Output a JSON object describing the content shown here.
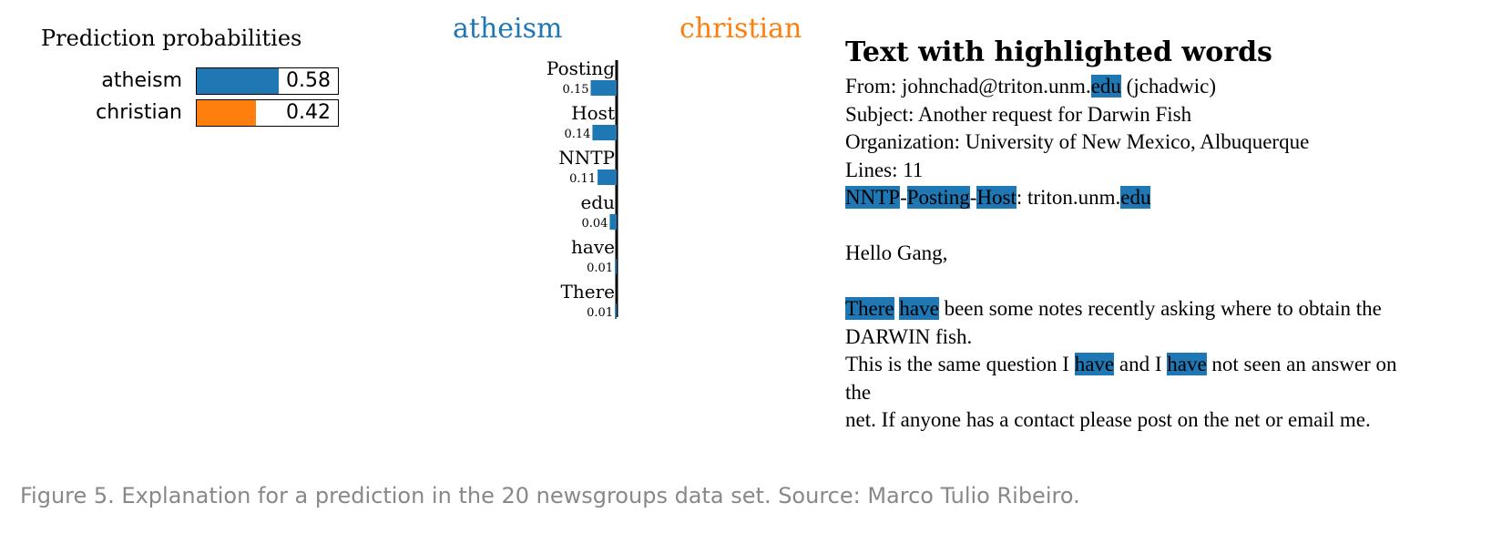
{
  "colors": {
    "atheism": "#1f77b4",
    "christian": "#ff7f0e",
    "highlight": "#1f77b4"
  },
  "chart_data": [
    {
      "type": "bar",
      "title": "Prediction probabilities",
      "categories": [
        "atheism",
        "christian"
      ],
      "values": [
        0.58,
        0.42
      ],
      "xlim": [
        0,
        1
      ],
      "value_labels": [
        "0.58",
        "0.42"
      ]
    },
    {
      "type": "bar",
      "orientation": "horizontal",
      "class_labels": [
        "atheism",
        "christian"
      ],
      "categories": [
        "Posting",
        "Host",
        "NNTP",
        "edu",
        "have",
        "There"
      ],
      "values": [
        0.15,
        0.14,
        0.11,
        0.04,
        0.01,
        0.01
      ],
      "value_labels": [
        "0.15",
        "0.14",
        "0.11",
        "0.04",
        "0.01",
        "0.01"
      ],
      "direction": "atheism"
    }
  ],
  "text_panel": {
    "title": "Text with highlighted words",
    "lines": [
      [
        {
          "t": "From: johnchad@triton.unm."
        },
        {
          "t": "edu",
          "hl": true
        },
        {
          "t": " (jchadwic)"
        }
      ],
      [
        {
          "t": "Subject: Another request for Darwin Fish"
        }
      ],
      [
        {
          "t": "Organization: University of New Mexico, Albuquerque"
        }
      ],
      [
        {
          "t": "Lines: 11"
        }
      ],
      [
        {
          "t": "NNTP",
          "hl": true
        },
        {
          "t": "-"
        },
        {
          "t": "Posting",
          "hl": true
        },
        {
          "t": "-"
        },
        {
          "t": "Host",
          "hl": true
        },
        {
          "t": ": triton.unm."
        },
        {
          "t": "edu",
          "hl": true
        }
      ],
      [
        {
          "t": ""
        }
      ],
      [
        {
          "t": "Hello Gang,"
        }
      ],
      [
        {
          "t": ""
        }
      ],
      [
        {
          "t": "There",
          "hl": true
        },
        {
          "t": " "
        },
        {
          "t": "have",
          "hl": true
        },
        {
          "t": " been some notes recently asking where to obtain the"
        }
      ],
      [
        {
          "t": "DARWIN fish."
        }
      ],
      [
        {
          "t": "This is the same question I "
        },
        {
          "t": "have",
          "hl": true
        },
        {
          "t": " and I "
        },
        {
          "t": "have",
          "hl": true
        },
        {
          "t": " not seen an answer on"
        }
      ],
      [
        {
          "t": "the"
        }
      ],
      [
        {
          "t": "net. If anyone has a contact please post on the net or email me."
        }
      ]
    ]
  },
  "caption": "Figure 5. Explanation for a prediction in the 20 newsgroups data set. Source: Marco Tulio Ribeiro."
}
